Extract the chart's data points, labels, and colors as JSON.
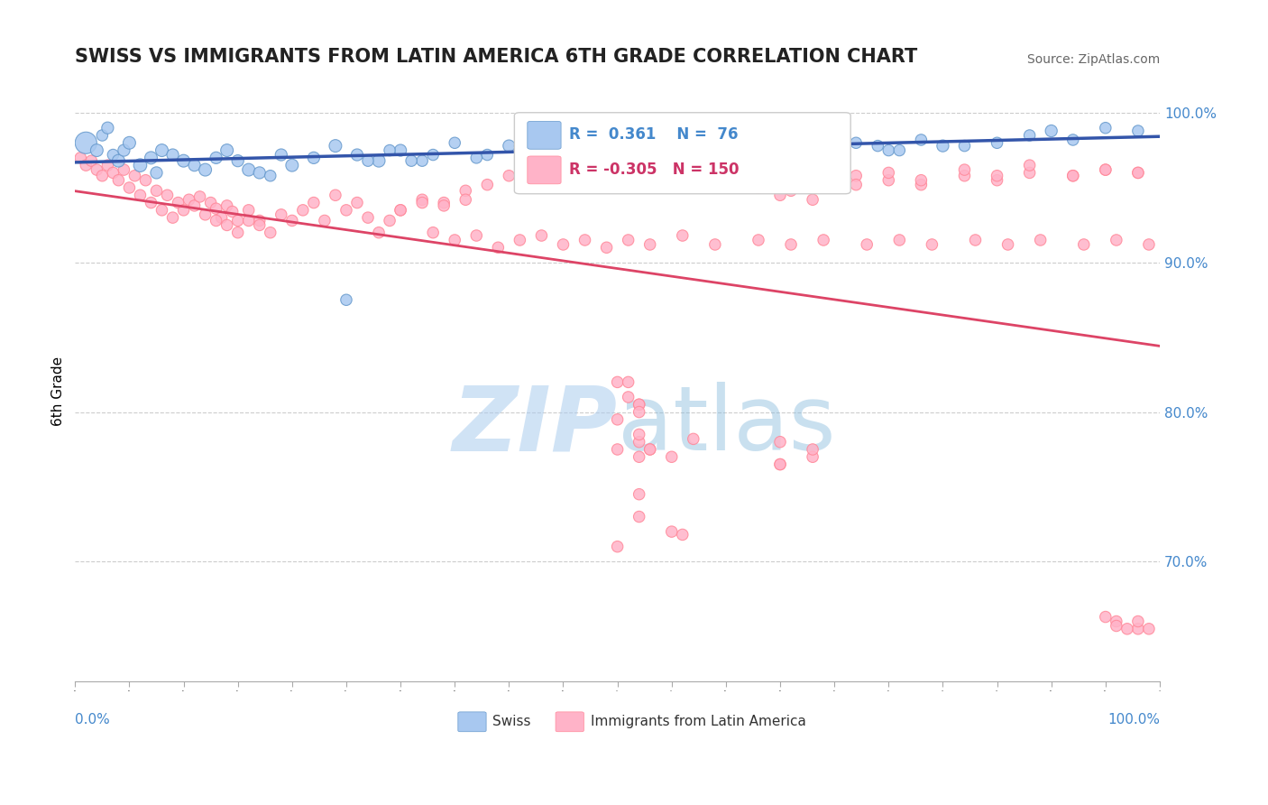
{
  "title": "SWISS VS IMMIGRANTS FROM LATIN AMERICA 6TH GRADE CORRELATION CHART",
  "source": "Source: ZipAtlas.com",
  "ylabel": "6th Grade",
  "ylabel_right_ticks": [
    100.0,
    90.0,
    80.0,
    70.0
  ],
  "xlim": [
    0.0,
    1.0
  ],
  "ylim": [
    0.62,
    1.008
  ],
  "blue_R": 0.361,
  "blue_N": 76,
  "pink_R": -0.305,
  "pink_N": 150,
  "blue_marker_color": "#A8C8F0",
  "blue_edge_color": "#6699CC",
  "pink_marker_color": "#FFB3C8",
  "pink_edge_color": "#FF8899",
  "trend_blue": "#3355AA",
  "trend_pink": "#DD4466",
  "grid_color": "#CCCCCC",
  "watermark_zip_color": "#AACCEE",
  "watermark_atlas_color": "#88BBDD",
  "blue_x": [
    0.01,
    0.02,
    0.025,
    0.03,
    0.035,
    0.04,
    0.045,
    0.05,
    0.06,
    0.07,
    0.075,
    0.08,
    0.09,
    0.1,
    0.11,
    0.12,
    0.13,
    0.14,
    0.15,
    0.16,
    0.17,
    0.18,
    0.19,
    0.2,
    0.22,
    0.24,
    0.26,
    0.28,
    0.3,
    0.35,
    0.4,
    0.45,
    0.5,
    0.55,
    0.6,
    0.65,
    0.7,
    0.75,
    0.8,
    0.85,
    0.9,
    0.95,
    0.32,
    0.38,
    0.42,
    0.48,
    0.52,
    0.58,
    0.62,
    0.68,
    0.72,
    0.78,
    0.82,
    0.88,
    0.92,
    0.98,
    0.25,
    0.27,
    0.29,
    0.31,
    0.33,
    0.37,
    0.41,
    0.44,
    0.46,
    0.49,
    0.51,
    0.53,
    0.57,
    0.61,
    0.64,
    0.66,
    0.69,
    0.71,
    0.74,
    0.76
  ],
  "blue_y": [
    0.98,
    0.975,
    0.985,
    0.99,
    0.972,
    0.968,
    0.975,
    0.98,
    0.965,
    0.97,
    0.96,
    0.975,
    0.972,
    0.968,
    0.965,
    0.962,
    0.97,
    0.975,
    0.968,
    0.962,
    0.96,
    0.958,
    0.972,
    0.965,
    0.97,
    0.978,
    0.972,
    0.968,
    0.975,
    0.98,
    0.978,
    0.982,
    0.985,
    0.98,
    0.975,
    0.978,
    0.98,
    0.975,
    0.978,
    0.98,
    0.988,
    0.99,
    0.968,
    0.972,
    0.975,
    0.978,
    0.98,
    0.982,
    0.978,
    0.975,
    0.98,
    0.982,
    0.978,
    0.985,
    0.982,
    0.988,
    0.875,
    0.968,
    0.975,
    0.968,
    0.972,
    0.97,
    0.978,
    0.975,
    0.98,
    0.978,
    0.975,
    0.98,
    0.978,
    0.982,
    0.978,
    0.975,
    0.98,
    0.982,
    0.978,
    0.975
  ],
  "blue_sizes": [
    300,
    100,
    80,
    90,
    80,
    100,
    90,
    100,
    110,
    100,
    90,
    100,
    90,
    100,
    90,
    100,
    90,
    100,
    90,
    100,
    90,
    80,
    90,
    100,
    90,
    100,
    90,
    100,
    90,
    80,
    90,
    80,
    90,
    80,
    90,
    80,
    90,
    80,
    90,
    80,
    90,
    80,
    80,
    80,
    80,
    80,
    80,
    80,
    80,
    80,
    80,
    80,
    80,
    80,
    80,
    80,
    80,
    80,
    80,
    80,
    80,
    80,
    80,
    80,
    80,
    80,
    80,
    80,
    80,
    80,
    80,
    80,
    80,
    80,
    80,
    80
  ],
  "pink_x": [
    0.005,
    0.01,
    0.015,
    0.02,
    0.025,
    0.03,
    0.035,
    0.04,
    0.045,
    0.05,
    0.055,
    0.06,
    0.065,
    0.07,
    0.075,
    0.08,
    0.085,
    0.09,
    0.095,
    0.1,
    0.105,
    0.11,
    0.115,
    0.12,
    0.125,
    0.13,
    0.135,
    0.14,
    0.145,
    0.15,
    0.16,
    0.17,
    0.18,
    0.19,
    0.2,
    0.21,
    0.22,
    0.23,
    0.24,
    0.25,
    0.26,
    0.27,
    0.28,
    0.29,
    0.3,
    0.32,
    0.34,
    0.36,
    0.38,
    0.4,
    0.42,
    0.44,
    0.46,
    0.48,
    0.5,
    0.52,
    0.55,
    0.58,
    0.62,
    0.65,
    0.68,
    0.72,
    0.75,
    0.78,
    0.82,
    0.85,
    0.88,
    0.92,
    0.95,
    0.98,
    0.33,
    0.35,
    0.37,
    0.39,
    0.41,
    0.43,
    0.45,
    0.47,
    0.49,
    0.51,
    0.53,
    0.56,
    0.59,
    0.63,
    0.66,
    0.69,
    0.73,
    0.76,
    0.79,
    0.83,
    0.86,
    0.89,
    0.93,
    0.96,
    0.99,
    0.13,
    0.14,
    0.15,
    0.16,
    0.17,
    0.5,
    0.52,
    0.5,
    0.51,
    0.52,
    0.51,
    0.52,
    0.65,
    0.55,
    0.57,
    0.65,
    0.68,
    0.52,
    0.53,
    0.52,
    0.53,
    0.65,
    0.68,
    0.52,
    0.5,
    0.5,
    0.52,
    0.52,
    0.55,
    0.56,
    0.96,
    0.98,
    0.95,
    0.96,
    0.97,
    0.98,
    0.99,
    0.63,
    0.65,
    0.66,
    0.68,
    0.7,
    0.72,
    0.75,
    0.78,
    0.82,
    0.85,
    0.88,
    0.92,
    0.95,
    0.98,
    0.3,
    0.32,
    0.34,
    0.36
  ],
  "pink_y": [
    0.97,
    0.965,
    0.968,
    0.962,
    0.958,
    0.965,
    0.96,
    0.955,
    0.962,
    0.95,
    0.958,
    0.945,
    0.955,
    0.94,
    0.948,
    0.935,
    0.945,
    0.93,
    0.94,
    0.935,
    0.942,
    0.938,
    0.944,
    0.932,
    0.94,
    0.936,
    0.93,
    0.938,
    0.934,
    0.928,
    0.935,
    0.928,
    0.92,
    0.932,
    0.928,
    0.935,
    0.94,
    0.928,
    0.945,
    0.935,
    0.94,
    0.93,
    0.92,
    0.928,
    0.935,
    0.942,
    0.94,
    0.948,
    0.952,
    0.958,
    0.962,
    0.96,
    0.968,
    0.962,
    0.97,
    0.958,
    0.96,
    0.955,
    0.96,
    0.958,
    0.96,
    0.958,
    0.955,
    0.952,
    0.958,
    0.955,
    0.96,
    0.958,
    0.962,
    0.96,
    0.92,
    0.915,
    0.918,
    0.91,
    0.915,
    0.918,
    0.912,
    0.915,
    0.91,
    0.915,
    0.912,
    0.918,
    0.912,
    0.915,
    0.912,
    0.915,
    0.912,
    0.915,
    0.912,
    0.915,
    0.912,
    0.915,
    0.912,
    0.915,
    0.912,
    0.928,
    0.925,
    0.92,
    0.928,
    0.925,
    0.82,
    0.805,
    0.795,
    0.82,
    0.805,
    0.81,
    0.8,
    0.765,
    0.77,
    0.782,
    0.765,
    0.77,
    0.78,
    0.775,
    0.77,
    0.775,
    0.78,
    0.775,
    0.785,
    0.775,
    0.71,
    0.73,
    0.745,
    0.72,
    0.718,
    0.66,
    0.655,
    0.663,
    0.657,
    0.655,
    0.66,
    0.655,
    0.95,
    0.945,
    0.948,
    0.942,
    0.958,
    0.952,
    0.96,
    0.955,
    0.962,
    0.958,
    0.965,
    0.958,
    0.962,
    0.96,
    0.935,
    0.94,
    0.938,
    0.942
  ],
  "pink_sizes": [
    80,
    80,
    80,
    80,
    80,
    80,
    80,
    80,
    80,
    80,
    80,
    80,
    80,
    80,
    80,
    80,
    80,
    80,
    80,
    80,
    80,
    80,
    80,
    80,
    80,
    80,
    80,
    80,
    80,
    80,
    80,
    80,
    80,
    80,
    80,
    80,
    80,
    80,
    80,
    80,
    80,
    80,
    80,
    80,
    80,
    80,
    80,
    80,
    80,
    80,
    80,
    80,
    80,
    80,
    80,
    80,
    80,
    80,
    80,
    80,
    80,
    80,
    80,
    80,
    80,
    80,
    80,
    80,
    80,
    80,
    80,
    80,
    80,
    80,
    80,
    80,
    80,
    80,
    80,
    80,
    80,
    80,
    80,
    80,
    80,
    80,
    80,
    80,
    80,
    80,
    80,
    80,
    80,
    80,
    80,
    80,
    80,
    80,
    80,
    80,
    80,
    80,
    80,
    80,
    80,
    80,
    80,
    80,
    80,
    80,
    80,
    80,
    80,
    80,
    80,
    80,
    80,
    80,
    80,
    80,
    80,
    80,
    80,
    80,
    80,
    80,
    80,
    80,
    80,
    80,
    80,
    80,
    80,
    80,
    80,
    80,
    80,
    80,
    80,
    80,
    80,
    80,
    80,
    80,
    80,
    80,
    80,
    80,
    80,
    80
  ]
}
